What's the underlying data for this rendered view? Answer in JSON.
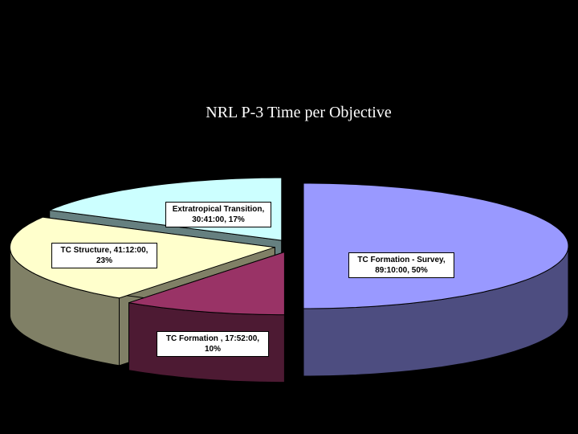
{
  "chart_data": {
    "type": "pie",
    "title": "NRL P-3 Time per Objective",
    "categories": [
      "TC Formation - Survey",
      "TC Formation ",
      "TC Structure",
      "Extratropical Transition"
    ],
    "values": [
      50,
      10,
      23,
      17
    ],
    "value_labels": [
      "TC Formation - Survey, 89:10:00, 50%",
      "TC Formation , 17:52:00, 10%",
      "TC Structure, 41:12:00, 23%",
      "Extratropical Transition, 30:41:00, 17%"
    ],
    "colors": [
      "#9999ff",
      "#993366",
      "#ffffcc",
      "#ccffff"
    ],
    "side_colors": [
      "#4d4d80",
      "#4d1a33",
      "#808066",
      "#668080"
    ]
  }
}
